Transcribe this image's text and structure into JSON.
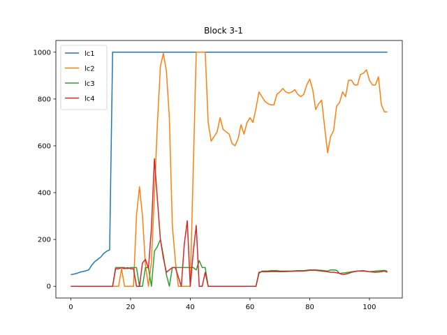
{
  "chart_data": {
    "type": "line",
    "title": "Block 3-1",
    "xlabel": "",
    "ylabel": "",
    "xlim": [
      -5,
      111
    ],
    "ylim": [
      -50,
      1050
    ],
    "xticks": [
      0,
      20,
      40,
      60,
      80,
      100
    ],
    "yticks": [
      0,
      200,
      400,
      600,
      800,
      1000
    ],
    "grid": false,
    "legend_position": "top-left",
    "series": [
      {
        "name": "lc1",
        "color": "#1f77b4",
        "x": [
          0,
          1,
          2,
          3,
          4,
          5,
          6,
          7,
          8,
          9,
          10,
          11,
          12,
          13,
          14,
          15,
          20,
          30,
          40,
          50,
          60,
          70,
          80,
          90,
          100,
          106
        ],
        "y": [
          50,
          52,
          55,
          60,
          63,
          66,
          70,
          90,
          105,
          115,
          125,
          140,
          150,
          155,
          1000,
          1000,
          1000,
          1000,
          1000,
          1000,
          1000,
          1000,
          1000,
          1000,
          1000,
          1000
        ]
      },
      {
        "name": "lc2",
        "color": "#ff7f0e",
        "x": [
          0,
          5,
          10,
          14,
          15,
          16,
          17,
          18,
          19,
          20,
          21,
          22,
          23,
          24,
          25,
          26,
          27,
          28,
          29,
          30,
          31,
          32,
          33,
          34,
          35,
          36,
          37,
          38,
          39,
          40,
          41,
          42,
          43,
          44,
          45,
          46,
          47,
          48,
          49,
          50,
          51,
          52,
          53,
          54,
          55,
          56,
          57,
          58,
          59,
          60,
          61,
          62,
          63,
          64,
          65,
          66,
          67,
          68,
          69,
          70,
          71,
          72,
          73,
          74,
          75,
          76,
          77,
          78,
          79,
          80,
          81,
          82,
          83,
          84,
          85,
          86,
          87,
          88,
          89,
          90,
          91,
          92,
          93,
          94,
          95,
          96,
          97,
          98,
          99,
          100,
          101,
          102,
          103,
          104,
          105,
          106
        ],
        "y": [
          0,
          0,
          0,
          0,
          0,
          0,
          75,
          0,
          0,
          0,
          0,
          305,
          425,
          300,
          90,
          0,
          105,
          395,
          695,
          940,
          995,
          920,
          720,
          260,
          110,
          0,
          0,
          0,
          0,
          0,
          500,
          1000,
          1000,
          1000,
          1000,
          700,
          620,
          640,
          660,
          720,
          670,
          660,
          650,
          610,
          600,
          630,
          690,
          650,
          700,
          720,
          700,
          760,
          830,
          810,
          790,
          780,
          775,
          775,
          820,
          830,
          845,
          830,
          825,
          830,
          840,
          820,
          810,
          820,
          860,
          885,
          840,
          755,
          780,
          795,
          680,
          570,
          640,
          665,
          770,
          785,
          830,
          810,
          880,
          880,
          860,
          860,
          905,
          910,
          925,
          880,
          860,
          860,
          895,
          775,
          745,
          745
        ],
        "note": ""
      },
      {
        "name": "lc3",
        "color": "#2ca02c",
        "x": [
          0,
          5,
          10,
          14,
          15,
          16,
          17,
          18,
          19,
          20,
          21,
          22,
          23,
          24,
          25,
          26,
          27,
          28,
          29,
          30,
          31,
          32,
          33,
          34,
          35,
          36,
          37,
          38,
          39,
          40,
          41,
          42,
          43,
          44,
          45,
          46,
          50,
          55,
          60,
          61,
          62,
          63,
          64,
          65,
          66,
          67,
          68,
          69,
          70,
          72,
          74,
          76,
          78,
          80,
          82,
          84,
          86,
          87,
          88,
          89,
          90,
          92,
          94,
          96,
          98,
          100,
          102,
          104,
          105,
          106
        ],
        "y": [
          0,
          0,
          0,
          0,
          80,
          80,
          80,
          80,
          75,
          80,
          80,
          80,
          0,
          0,
          80,
          80,
          0,
          150,
          170,
          200,
          130,
          50,
          0,
          80,
          80,
          80,
          80,
          80,
          80,
          80,
          80,
          70,
          110,
          80,
          80,
          0,
          0,
          0,
          0,
          0,
          0,
          55,
          65,
          65,
          65,
          67,
          67,
          67,
          65,
          65,
          65,
          67,
          67,
          70,
          70,
          68,
          65,
          70,
          70,
          68,
          55,
          58,
          62,
          65,
          67,
          62,
          65,
          67,
          68,
          65
        ]
      },
      {
        "name": "lc4",
        "color": "#d62728",
        "x": [
          0,
          5,
          10,
          14,
          15,
          16,
          17,
          18,
          19,
          20,
          21,
          22,
          23,
          24,
          25,
          26,
          27,
          28,
          29,
          30,
          31,
          32,
          33,
          34,
          35,
          36,
          37,
          38,
          39,
          40,
          41,
          42,
          43,
          44,
          45,
          46,
          50,
          55,
          60,
          61,
          62,
          63,
          64,
          65,
          66,
          67,
          68,
          69,
          70,
          72,
          74,
          76,
          78,
          80,
          82,
          84,
          86,
          87,
          88,
          89,
          90,
          91,
          92,
          93,
          94,
          96,
          98,
          100,
          102,
          104,
          105,
          106
        ],
        "y": [
          0,
          0,
          0,
          0,
          75,
          75,
          80,
          75,
          80,
          75,
          75,
          0,
          0,
          100,
          115,
          75,
          250,
          545,
          370,
          200,
          120,
          60,
          70,
          80,
          80,
          40,
          0,
          180,
          280,
          0,
          145,
          260,
          0,
          0,
          60,
          0,
          0,
          0,
          0,
          0,
          0,
          60,
          62,
          62,
          62,
          63,
          63,
          63,
          62,
          63,
          64,
          65,
          65,
          68,
          68,
          65,
          62,
          60,
          60,
          58,
          55,
          50,
          52,
          55,
          60,
          65,
          65,
          62,
          60,
          62,
          65,
          60
        ]
      }
    ]
  }
}
